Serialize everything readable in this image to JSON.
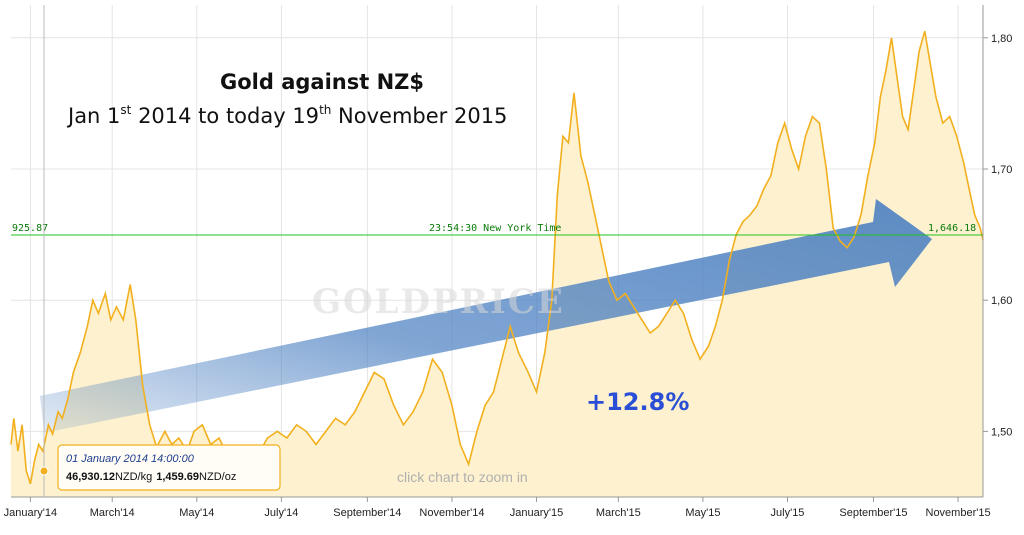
{
  "title": "Gold against NZ$",
  "subtitle": {
    "start": "Jan 1",
    "start_sup": "st",
    "middle": " 2014   to  today 19",
    "end_sup": "th",
    "end": " November 2015"
  },
  "annotation_change": "+12.8%",
  "watermark": "GOLDPRICE",
  "zoom_hint": "click chart to zoom in",
  "reference_line": {
    "left_label": "925.87",
    "center_label": "23:54:30 New York Time",
    "right_label": "1,646.18",
    "color": "#22c322"
  },
  "tooltip": {
    "date": "01 January 2014 14:00:00",
    "value_kg": "46,930.12",
    "unit_kg": "NZD/kg",
    "value_oz": "1,459.69",
    "unit_oz": "NZD/oz"
  },
  "colors": {
    "line": "#f2b01e",
    "fill": "#fdf1cf",
    "arrow": "#4a7fc1",
    "grid": "#e4e4e4"
  },
  "chart_data": {
    "type": "area",
    "x_unit": "date",
    "y_unit": "NZD per ounce",
    "ylim": [
      1450,
      1825
    ],
    "yticks": [
      {
        "value": 1500,
        "label": "1,50"
      },
      {
        "value": 1600,
        "label": "1,60"
      },
      {
        "value": 1700,
        "label": "1,70"
      },
      {
        "value": 1800,
        "label": "1,80"
      }
    ],
    "xticks": [
      {
        "date": "2014-01-01",
        "label": "January'14"
      },
      {
        "date": "2014-03-01",
        "label": "March'14"
      },
      {
        "date": "2014-05-01",
        "label": "May'14"
      },
      {
        "date": "2014-07-01",
        "label": "July'14"
      },
      {
        "date": "2014-09-01",
        "label": "September'14"
      },
      {
        "date": "2014-11-01",
        "label": "November'14"
      },
      {
        "date": "2015-01-01",
        "label": "January'15"
      },
      {
        "date": "2015-03-01",
        "label": "March'15"
      },
      {
        "date": "2015-05-01",
        "label": "May'15"
      },
      {
        "date": "2015-07-01",
        "label": "July'15"
      },
      {
        "date": "2015-09-01",
        "label": "September'15"
      },
      {
        "date": "2015-11-01",
        "label": "November'15"
      }
    ],
    "x_range": [
      "2013-12-18",
      "2015-11-19"
    ],
    "grid": true,
    "series": [
      {
        "values": [
          {
            "x": "2013-12-18",
            "y": 1490
          },
          {
            "x": "2013-12-20",
            "y": 1510
          },
          {
            "x": "2013-12-23",
            "y": 1485
          },
          {
            "x": "2013-12-26",
            "y": 1505
          },
          {
            "x": "2013-12-29",
            "y": 1470
          },
          {
            "x": "2014-01-01",
            "y": 1460
          },
          {
            "x": "2014-01-04",
            "y": 1478
          },
          {
            "x": "2014-01-07",
            "y": 1490
          },
          {
            "x": "2014-01-10",
            "y": 1485
          },
          {
            "x": "2014-01-14",
            "y": 1505
          },
          {
            "x": "2014-01-17",
            "y": 1498
          },
          {
            "x": "2014-01-21",
            "y": 1515
          },
          {
            "x": "2014-01-24",
            "y": 1510
          },
          {
            "x": "2014-01-28",
            "y": 1525
          },
          {
            "x": "2014-02-01",
            "y": 1545
          },
          {
            "x": "2014-02-06",
            "y": 1560
          },
          {
            "x": "2014-02-11",
            "y": 1580
          },
          {
            "x": "2014-02-15",
            "y": 1600
          },
          {
            "x": "2014-02-19",
            "y": 1590
          },
          {
            "x": "2014-02-24",
            "y": 1605
          },
          {
            "x": "2014-02-28",
            "y": 1585
          },
          {
            "x": "2014-03-04",
            "y": 1595
          },
          {
            "x": "2014-03-09",
            "y": 1585
          },
          {
            "x": "2014-03-14",
            "y": 1612
          },
          {
            "x": "2014-03-18",
            "y": 1585
          },
          {
            "x": "2014-03-23",
            "y": 1535
          },
          {
            "x": "2014-03-28",
            "y": 1505
          },
          {
            "x": "2014-04-02",
            "y": 1488
          },
          {
            "x": "2014-04-08",
            "y": 1500
          },
          {
            "x": "2014-04-13",
            "y": 1490
          },
          {
            "x": "2014-04-18",
            "y": 1495
          },
          {
            "x": "2014-04-24",
            "y": 1485
          },
          {
            "x": "2014-04-29",
            "y": 1500
          },
          {
            "x": "2014-05-05",
            "y": 1505
          },
          {
            "x": "2014-05-11",
            "y": 1490
          },
          {
            "x": "2014-05-17",
            "y": 1495
          },
          {
            "x": "2014-05-24",
            "y": 1480
          },
          {
            "x": "2014-06-01",
            "y": 1483
          },
          {
            "x": "2014-06-07",
            "y": 1475
          },
          {
            "x": "2014-06-14",
            "y": 1482
          },
          {
            "x": "2014-06-21",
            "y": 1495
          },
          {
            "x": "2014-06-28",
            "y": 1500
          },
          {
            "x": "2014-07-05",
            "y": 1495
          },
          {
            "x": "2014-07-12",
            "y": 1505
          },
          {
            "x": "2014-07-19",
            "y": 1500
          },
          {
            "x": "2014-07-26",
            "y": 1490
          },
          {
            "x": "2014-08-02",
            "y": 1500
          },
          {
            "x": "2014-08-09",
            "y": 1510
          },
          {
            "x": "2014-08-16",
            "y": 1505
          },
          {
            "x": "2014-08-23",
            "y": 1515
          },
          {
            "x": "2014-08-30",
            "y": 1530
          },
          {
            "x": "2014-09-06",
            "y": 1545
          },
          {
            "x": "2014-09-13",
            "y": 1540
          },
          {
            "x": "2014-09-20",
            "y": 1520
          },
          {
            "x": "2014-09-27",
            "y": 1505
          },
          {
            "x": "2014-10-04",
            "y": 1515
          },
          {
            "x": "2014-10-11",
            "y": 1530
          },
          {
            "x": "2014-10-18",
            "y": 1555
          },
          {
            "x": "2014-10-25",
            "y": 1545
          },
          {
            "x": "2014-11-01",
            "y": 1520
          },
          {
            "x": "2014-11-07",
            "y": 1490
          },
          {
            "x": "2014-11-13",
            "y": 1475
          },
          {
            "x": "2014-11-19",
            "y": 1500
          },
          {
            "x": "2014-11-25",
            "y": 1520
          },
          {
            "x": "2014-12-01",
            "y": 1530
          },
          {
            "x": "2014-12-07",
            "y": 1555
          },
          {
            "x": "2014-12-13",
            "y": 1580
          },
          {
            "x": "2014-12-19",
            "y": 1560
          },
          {
            "x": "2014-12-26",
            "y": 1545
          },
          {
            "x": "2015-01-01",
            "y": 1530
          },
          {
            "x": "2015-01-07",
            "y": 1560
          },
          {
            "x": "2015-01-12",
            "y": 1600
          },
          {
            "x": "2015-01-16",
            "y": 1680
          },
          {
            "x": "2015-01-20",
            "y": 1725
          },
          {
            "x": "2015-01-24",
            "y": 1720
          },
          {
            "x": "2015-01-28",
            "y": 1758
          },
          {
            "x": "2015-02-02",
            "y": 1710
          },
          {
            "x": "2015-02-07",
            "y": 1690
          },
          {
            "x": "2015-02-12",
            "y": 1665
          },
          {
            "x": "2015-02-17",
            "y": 1640
          },
          {
            "x": "2015-02-22",
            "y": 1615
          },
          {
            "x": "2015-02-28",
            "y": 1600
          },
          {
            "x": "2015-03-06",
            "y": 1605
          },
          {
            "x": "2015-03-12",
            "y": 1595
          },
          {
            "x": "2015-03-18",
            "y": 1585
          },
          {
            "x": "2015-03-24",
            "y": 1575
          },
          {
            "x": "2015-03-30",
            "y": 1580
          },
          {
            "x": "2015-04-05",
            "y": 1590
          },
          {
            "x": "2015-04-11",
            "y": 1600
          },
          {
            "x": "2015-04-17",
            "y": 1590
          },
          {
            "x": "2015-04-23",
            "y": 1570
          },
          {
            "x": "2015-04-29",
            "y": 1555
          },
          {
            "x": "2015-05-05",
            "y": 1565
          },
          {
            "x": "2015-05-10",
            "y": 1580
          },
          {
            "x": "2015-05-15",
            "y": 1600
          },
          {
            "x": "2015-05-20",
            "y": 1630
          },
          {
            "x": "2015-05-25",
            "y": 1650
          },
          {
            "x": "2015-05-30",
            "y": 1660
          },
          {
            "x": "2015-06-04",
            "y": 1665
          },
          {
            "x": "2015-06-09",
            "y": 1672
          },
          {
            "x": "2015-06-14",
            "y": 1685
          },
          {
            "x": "2015-06-19",
            "y": 1695
          },
          {
            "x": "2015-06-24",
            "y": 1720
          },
          {
            "x": "2015-06-29",
            "y": 1735
          },
          {
            "x": "2015-07-04",
            "y": 1715
          },
          {
            "x": "2015-07-09",
            "y": 1700
          },
          {
            "x": "2015-07-14",
            "y": 1725
          },
          {
            "x": "2015-07-19",
            "y": 1740
          },
          {
            "x": "2015-07-24",
            "y": 1735
          },
          {
            "x": "2015-07-29",
            "y": 1700
          },
          {
            "x": "2015-08-03",
            "y": 1655
          },
          {
            "x": "2015-08-08",
            "y": 1645
          },
          {
            "x": "2015-08-13",
            "y": 1640
          },
          {
            "x": "2015-08-18",
            "y": 1648
          },
          {
            "x": "2015-08-23",
            "y": 1665
          },
          {
            "x": "2015-08-28",
            "y": 1695
          },
          {
            "x": "2015-09-02",
            "y": 1720
          },
          {
            "x": "2015-09-06",
            "y": 1755
          },
          {
            "x": "2015-09-10",
            "y": 1775
          },
          {
            "x": "2015-09-14",
            "y": 1800
          },
          {
            "x": "2015-09-18",
            "y": 1770
          },
          {
            "x": "2015-09-22",
            "y": 1740
          },
          {
            "x": "2015-09-26",
            "y": 1730
          },
          {
            "x": "2015-09-30",
            "y": 1760
          },
          {
            "x": "2015-10-04",
            "y": 1790
          },
          {
            "x": "2015-10-08",
            "y": 1805
          },
          {
            "x": "2015-10-12",
            "y": 1780
          },
          {
            "x": "2015-10-16",
            "y": 1755
          },
          {
            "x": "2015-10-21",
            "y": 1735
          },
          {
            "x": "2015-10-26",
            "y": 1740
          },
          {
            "x": "2015-10-31",
            "y": 1725
          },
          {
            "x": "2015-11-05",
            "y": 1705
          },
          {
            "x": "2015-11-09",
            "y": 1685
          },
          {
            "x": "2015-11-13",
            "y": 1665
          },
          {
            "x": "2015-11-17",
            "y": 1655
          },
          {
            "x": "2015-11-19",
            "y": 1646
          }
        ]
      }
    ]
  }
}
